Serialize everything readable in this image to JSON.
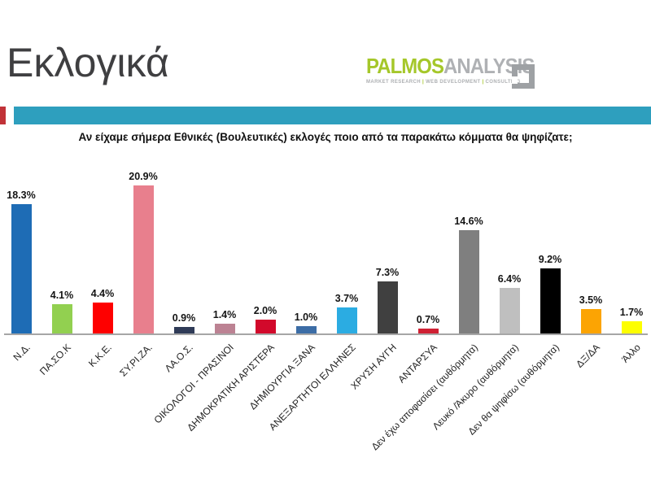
{
  "header": {
    "title": "Εκλογικά",
    "logo": {
      "brand_primary": "PALMOS",
      "brand_secondary": "ANALYSIS",
      "brand_primary_color": "#a5c72a",
      "brand_secondary_color": "#afb1b4",
      "tagline_items": [
        "MARKET RESEARCH",
        "WEB DEVELOPMENT",
        "CONSULTING"
      ],
      "tagline_separator": "|",
      "tagline_separator_color": "#a5c72a"
    },
    "accent_square_color": "#c13238",
    "accent_bar_color": "#2e9fbe"
  },
  "chart_data": {
    "type": "bar",
    "title": "Αν είχαμε σήμερα Εθνικές (Βουλευτικές) εκλογές ποιο από τα παρακάτω κόμματα θα ψηφίζατε;",
    "categories": [
      "Ν.Δ.",
      "ΠΑ.ΣΟ.Κ",
      "Κ.Κ.Ε.",
      "ΣΥ.ΡΙ.ΖΑ.",
      "ΛΑ.Ο.Σ.",
      "ΟΙΚΟΛΟΓΟΙ - ΠΡΑΣΙΝΟΙ",
      "ΔΗΜΟΚΡΑΤΙΚΗ ΑΡΙΣΤΕΡΑ",
      "ΔΗΜΙΟΥΡΓΙΑ ΞΑΝΑ",
      "ΑΝΕΞΑΡΤΗΤΟΙ ΕΛΛΗΝΕΣ",
      "ΧΡΥΣΗ ΑΥΓΗ",
      "ΑΝΤΑΡΣΥΑ",
      "Δεν έχω αποφασίσει (αυθόρμητα)",
      "Λευκό /Άκυρο (αυθόρμητα)",
      "Δεν θα ψηφίσω (αυθόρμητα)",
      "ΔΞ/ΔΑ",
      "Άλλο"
    ],
    "values": [
      18.3,
      4.1,
      4.4,
      20.9,
      0.9,
      1.4,
      2.0,
      1.0,
      3.7,
      7.3,
      0.7,
      14.6,
      6.4,
      9.2,
      3.5,
      1.7
    ],
    "value_labels": [
      "18.3%",
      "4.1%",
      "4.4%",
      "20.9%",
      "0.9%",
      "1.4%",
      "2.0%",
      "1.0%",
      "3.7%",
      "7.3%",
      "0.7%",
      "14.6%",
      "6.4%",
      "9.2%",
      "3.5%",
      "1.7%"
    ],
    "bar_colors": [
      "#1e6cb5",
      "#92d050",
      "#fe0000",
      "#e87f8d",
      "#2f3b57",
      "#bc8293",
      "#d2092b",
      "#3c6da6",
      "#2bace2",
      "#404040",
      "#cf2033",
      "#7f7f7f",
      "#bfbfbf",
      "#000000",
      "#fca403",
      "#fdfe00"
    ],
    "xlabel": "",
    "ylabel": "",
    "ylim": [
      0,
      22
    ],
    "grid": false,
    "legend": "none",
    "axis_line_color": "#a6a6a6",
    "data_label_position": "outside-end",
    "category_label_rotation_deg": 45
  }
}
